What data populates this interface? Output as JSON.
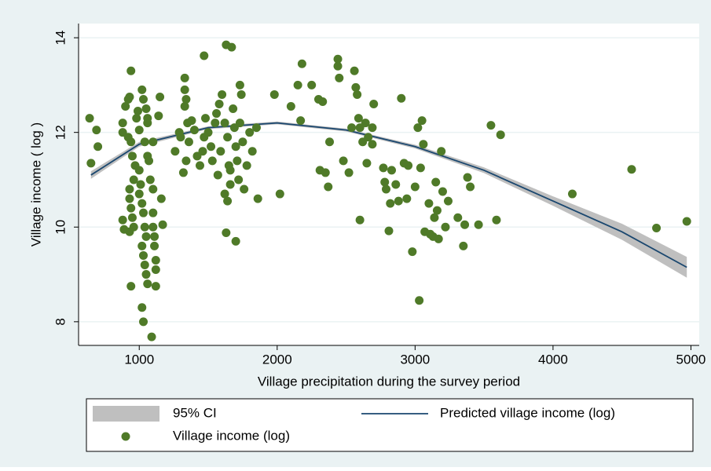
{
  "chart_data": {
    "type": "scatter",
    "xlabel": "Village precipitation during the survey period",
    "ylabel": "Village income ( log )",
    "xlim": [
      560,
      5060
    ],
    "ylim": [
      7.5,
      14.3
    ],
    "xticks": [
      1000,
      2000,
      3000,
      4000,
      5000
    ],
    "yticks": [
      8,
      10,
      12,
      14
    ],
    "grid": true,
    "series": [
      {
        "name": "95% CI",
        "type": "band",
        "color": "#bfbfbf",
        "x": [
          650,
          1000,
          1500,
          2000,
          2500,
          3000,
          3500,
          4000,
          4500,
          4970
        ],
        "lower": [
          11.02,
          11.7,
          12.07,
          12.17,
          12.02,
          11.66,
          11.14,
          10.45,
          9.73,
          8.93
        ],
        "upper": [
          11.18,
          11.8,
          12.13,
          12.23,
          12.08,
          11.74,
          11.26,
          10.65,
          10.07,
          9.37
        ]
      },
      {
        "name": "Predicted village income (log)",
        "type": "line",
        "color": "#1a476f",
        "x": [
          650,
          1000,
          1500,
          2000,
          2500,
          3000,
          3500,
          4000,
          4500,
          4970
        ],
        "values": [
          11.1,
          11.75,
          12.1,
          12.2,
          12.05,
          11.7,
          11.2,
          10.55,
          9.9,
          9.15
        ]
      },
      {
        "name": "Village income (log)",
        "type": "scatter",
        "color": "#4f7a28",
        "x": [
          640,
          650,
          690,
          700,
          880,
          880,
          880,
          890,
          900,
          920,
          930,
          940,
          920,
          940,
          950,
          960,
          930,
          930,
          940,
          950,
          960,
          930,
          940,
          970,
          980,
          990,
          1000,
          1010,
          1000,
          1020,
          1030,
          1040,
          1050,
          1020,
          1030,
          1040,
          1050,
          1060,
          1020,
          1030,
          1090,
          1020,
          1030,
          1050,
          1060,
          1040,
          1060,
          1070,
          1080,
          1100,
          1100,
          1110,
          1110,
          1120,
          1120,
          1120,
          1140,
          1150,
          1100,
          1160,
          1170,
          1100,
          1000,
          1060,
          1260,
          1290,
          1300,
          1330,
          1330,
          1340,
          1330,
          1350,
          1360,
          1340,
          1320,
          1380,
          1400,
          1420,
          1440,
          1460,
          1470,
          1480,
          1470,
          1500,
          1520,
          1530,
          1550,
          1560,
          1570,
          1580,
          1590,
          1600,
          1620,
          1630,
          1640,
          1650,
          1660,
          1670,
          1680,
          1690,
          1700,
          1710,
          1720,
          1730,
          1740,
          1750,
          1760,
          1630,
          1640,
          1700,
          1800,
          1820,
          1850,
          1860,
          1780,
          1730,
          1660,
          1620,
          1980,
          2020,
          2100,
          2150,
          2170,
          2180,
          2250,
          2300,
          2330,
          2310,
          2350,
          2380,
          2370,
          2440,
          2440,
          2450,
          2480,
          2520,
          2540,
          2560,
          2570,
          2580,
          2590,
          2600,
          2600,
          2620,
          2640,
          2650,
          2660,
          2690,
          2700,
          2690,
          2770,
          2780,
          2790,
          2810,
          2820,
          2830,
          2860,
          2880,
          2900,
          2920,
          2950,
          2940,
          2980,
          3000,
          3020,
          3030,
          3050,
          3060,
          3070,
          3040,
          3100,
          3110,
          3130,
          3140,
          3150,
          3160,
          3170,
          3190,
          3200,
          3220,
          3240,
          3310,
          3350,
          3360,
          3380,
          3400,
          3460,
          3550,
          3590,
          3620,
          4140,
          4570,
          4750,
          4970
        ],
        "values": [
          12.3,
          11.35,
          12.05,
          11.7,
          12.2,
          12.0,
          10.15,
          9.95,
          12.55,
          12.7,
          12.75,
          13.3,
          11.9,
          11.8,
          11.5,
          11.0,
          10.8,
          10.6,
          10.4,
          10.2,
          10.0,
          9.9,
          8.75,
          11.3,
          12.3,
          12.45,
          11.2,
          10.9,
          10.7,
          10.5,
          10.3,
          10.0,
          9.8,
          9.6,
          9.4,
          9.2,
          9.0,
          8.8,
          8.3,
          8.0,
          7.68,
          12.9,
          12.7,
          12.5,
          12.2,
          11.8,
          11.5,
          11.4,
          11.0,
          10.8,
          10.3,
          9.8,
          9.6,
          9.3,
          9.1,
          8.75,
          12.35,
          12.75,
          11.8,
          10.6,
          10.05,
          10.0,
          12.05,
          12.3,
          11.6,
          12.0,
          11.9,
          13.15,
          12.9,
          12.7,
          12.55,
          12.2,
          11.8,
          11.4,
          11.15,
          12.25,
          12.05,
          11.5,
          11.3,
          11.6,
          11.9,
          12.3,
          13.62,
          12.0,
          11.7,
          11.4,
          12.2,
          12.4,
          11.1,
          12.6,
          11.6,
          12.8,
          12.2,
          13.85,
          11.9,
          11.3,
          10.9,
          13.8,
          12.5,
          12.1,
          11.7,
          11.4,
          11.0,
          13.0,
          12.8,
          11.8,
          10.8,
          9.88,
          10.55,
          9.7,
          12.0,
          11.6,
          12.1,
          10.6,
          11.3,
          12.2,
          11.2,
          10.7,
          12.8,
          10.7,
          12.55,
          13.0,
          12.25,
          13.45,
          13.0,
          12.7,
          12.65,
          11.2,
          11.15,
          11.8,
          10.85,
          13.55,
          13.4,
          13.15,
          11.4,
          11.15,
          12.1,
          13.3,
          12.95,
          12.8,
          12.3,
          12.1,
          10.15,
          11.8,
          12.2,
          11.35,
          11.9,
          11.75,
          12.6,
          12.1,
          11.25,
          10.95,
          10.8,
          9.92,
          10.5,
          11.2,
          10.9,
          10.55,
          12.72,
          11.35,
          11.3,
          10.6,
          9.48,
          10.85,
          12.1,
          8.45,
          12.25,
          11.75,
          9.9,
          11.25,
          10.5,
          9.85,
          9.8,
          10.2,
          10.95,
          10.35,
          9.75,
          11.6,
          10.75,
          10.0,
          10.55,
          10.2,
          9.6,
          10.05,
          11.05,
          10.85,
          10.05,
          12.15,
          10.15,
          11.95,
          10.7,
          11.22,
          9.98,
          10.12
        ]
      }
    ]
  }
}
